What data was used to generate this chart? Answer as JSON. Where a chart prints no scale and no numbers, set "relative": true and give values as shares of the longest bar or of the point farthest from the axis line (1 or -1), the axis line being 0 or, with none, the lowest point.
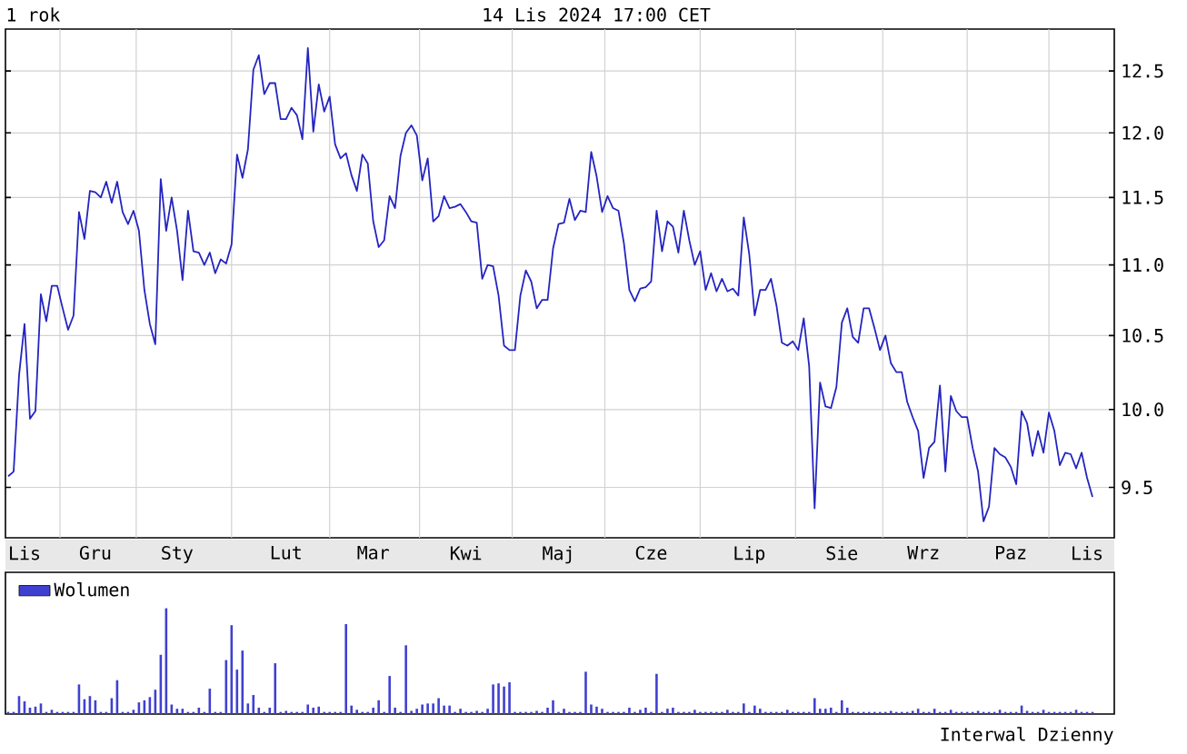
{
  "chart_data": [
    {
      "type": "line",
      "title": "1 rok",
      "subtitle": "14 Lis 2024 17:00 CET",
      "color": "#2424c0",
      "log": "y",
      "grid": true,
      "ylim": [
        9.19,
        12.85
      ],
      "categories": [
        null,
        null,
        null,
        "Lis",
        null,
        null,
        null,
        null,
        null,
        null,
        null,
        null,
        null,
        null,
        null,
        null,
        "Gru",
        null,
        null,
        null,
        null,
        null,
        null,
        null,
        null,
        null,
        null,
        null,
        null,
        null,
        null,
        "Sty",
        null,
        null,
        null,
        null,
        null,
        null,
        null,
        null,
        null,
        null,
        null,
        null,
        null,
        null,
        null,
        null,
        null,
        null,
        null,
        "Lut",
        null,
        null,
        null,
        null,
        null,
        null,
        null,
        null,
        null,
        null,
        null,
        null,
        null,
        null,
        null,
        "Mar",
        null,
        null,
        null,
        null,
        null,
        null,
        null,
        null,
        null,
        null,
        null,
        null,
        null,
        null,
        null,
        null,
        "Kwi",
        null,
        null,
        null,
        null,
        null,
        null,
        null,
        null,
        null,
        null,
        null,
        null,
        null,
        null,
        null,
        null,
        "Maj",
        null,
        null,
        null,
        null,
        null,
        null,
        null,
        null,
        null,
        null,
        null,
        null,
        null,
        null,
        null,
        null,
        "Cze",
        null,
        null,
        null,
        null,
        null,
        null,
        null,
        null,
        null,
        null,
        null,
        null,
        null,
        null,
        null,
        null,
        null,
        "Lip",
        null,
        null,
        null,
        null,
        null,
        null,
        null,
        null,
        null,
        null,
        null,
        null,
        null,
        null,
        null,
        null,
        "Sie",
        null,
        null,
        null,
        null,
        null,
        null,
        null,
        null,
        null,
        null,
        null,
        null,
        null,
        null,
        "Wrz",
        null,
        null,
        null,
        null,
        null,
        null,
        null,
        null,
        null,
        null,
        null,
        null,
        null,
        null,
        null,
        "Paz",
        null,
        null,
        null,
        null,
        null,
        null,
        null,
        null,
        null,
        null,
        null,
        null,
        null,
        "Lis",
        null
      ],
      "yticks": [
        9.5,
        {
          "value": 10,
          "label": "10.0"
        },
        10.5,
        {
          "value": 11,
          "label": "11.0"
        },
        11.5,
        {
          "value": 12,
          "label": "12.0"
        },
        12.5
      ],
      "values": [
        9.57,
        9.6,
        10.23,
        10.58,
        9.94,
        9.99,
        10.79,
        10.6,
        10.85,
        10.85,
        10.69,
        10.54,
        10.64,
        11.39,
        11.19,
        11.55,
        11.54,
        11.5,
        11.62,
        11.46,
        11.62,
        11.39,
        11.3,
        11.4,
        11.25,
        10.82,
        10.58,
        10.44,
        11.64,
        11.25,
        11.5,
        11.25,
        10.89,
        11.4,
        11.1,
        11.09,
        11.0,
        11.09,
        10.94,
        11.04,
        11.01,
        11.15,
        11.83,
        11.65,
        11.87,
        12.51,
        12.63,
        12.31,
        12.4,
        12.4,
        12.11,
        12.11,
        12.2,
        12.14,
        11.95,
        12.69,
        12.01,
        12.39,
        12.17,
        12.29,
        11.91,
        11.8,
        11.84,
        11.67,
        11.55,
        11.83,
        11.76,
        11.32,
        11.13,
        11.18,
        11.51,
        11.42,
        11.82,
        12.0,
        12.06,
        11.98,
        11.63,
        11.8,
        11.32,
        11.36,
        11.51,
        11.42,
        11.43,
        11.45,
        11.39,
        11.32,
        11.31,
        10.9,
        11.0,
        10.99,
        10.78,
        10.43,
        10.4,
        10.4,
        10.78,
        10.96,
        10.88,
        10.69,
        10.75,
        10.75,
        11.12,
        11.3,
        11.31,
        11.49,
        11.33,
        11.4,
        11.39,
        11.85,
        11.66,
        11.39,
        11.51,
        11.42,
        11.4,
        11.16,
        10.82,
        10.74,
        10.83,
        10.84,
        10.88,
        11.4,
        11.1,
        11.32,
        11.28,
        11.09,
        11.4,
        11.18,
        11.0,
        11.1,
        10.82,
        10.94,
        10.81,
        10.9,
        10.81,
        10.83,
        10.78,
        11.35,
        11.08,
        10.64,
        10.82,
        10.82,
        10.9,
        10.71,
        10.45,
        10.43,
        10.46,
        10.4,
        10.62,
        10.29,
        9.37,
        10.18,
        10.02,
        10.01,
        10.15,
        10.59,
        10.69,
        10.49,
        10.45,
        10.69,
        10.69,
        10.55,
        10.4,
        10.5,
        10.31,
        10.25,
        10.25,
        10.05,
        9.95,
        9.86,
        9.56,
        9.75,
        9.79,
        10.16,
        9.6,
        10.09,
        9.99,
        9.95,
        9.95,
        9.75,
        9.6,
        9.29,
        9.38,
        9.75,
        9.71,
        9.69,
        9.63,
        9.52,
        9.99,
        9.91,
        9.7,
        9.86,
        9.72,
        9.98,
        9.86,
        9.64,
        9.72,
        9.71,
        9.62,
        9.72,
        9.56,
        9.44
      ]
    },
    {
      "type": "bar",
      "relative": true,
      "legend": "top left",
      "annotations": [
        "Interwal Dzienny"
      ],
      "categories": [
        null,
        null,
        null,
        null,
        null,
        null,
        null,
        null,
        null,
        null,
        null,
        null,
        null,
        null,
        null,
        null,
        null,
        null,
        null,
        null,
        null,
        null,
        null,
        null,
        null,
        null,
        null,
        null,
        null,
        null,
        null,
        null,
        null,
        null,
        null,
        null,
        null,
        null,
        null,
        null,
        null,
        null,
        null,
        null,
        null,
        null,
        null,
        null,
        null,
        null,
        null,
        null,
        null,
        null,
        null,
        null,
        null,
        null,
        null,
        null,
        null,
        null,
        null,
        null,
        null,
        null,
        null,
        null,
        null,
        null,
        null,
        null,
        null,
        null,
        null,
        null,
        null,
        null,
        null,
        null,
        null,
        null,
        null,
        null,
        null,
        null,
        null,
        null,
        null,
        null,
        null,
        null,
        null,
        null,
        null,
        null,
        null,
        null,
        null,
        null,
        null,
        null,
        null,
        null,
        null,
        null,
        null,
        null,
        null,
        null,
        null,
        null,
        null,
        null,
        null,
        null,
        null,
        null,
        null,
        null,
        null,
        null,
        null,
        null,
        null,
        null,
        null,
        null,
        null,
        null,
        null,
        null,
        null,
        null,
        null,
        null,
        null,
        null,
        null,
        null,
        null,
        null,
        null,
        null,
        null,
        null,
        null,
        null,
        null,
        null,
        null,
        null,
        null,
        null,
        null,
        null,
        null,
        null,
        null,
        null,
        null,
        null,
        null,
        null,
        null,
        null,
        null,
        null,
        null,
        null,
        null,
        null,
        null,
        null,
        null,
        null,
        null,
        null,
        null,
        null,
        null,
        null,
        null,
        null,
        null,
        null,
        null,
        null,
        null,
        null,
        null,
        null,
        null,
        null,
        null,
        null,
        null,
        null,
        null,
        null
      ],
      "series": [
        {
          "name": "Wolumen",
          "color": "#4040d0",
          "values": [
            0.02,
            0.02,
            0.17,
            0.12,
            0.06,
            0.07,
            0.1,
            0.02,
            0.04,
            0.02,
            0.02,
            0.02,
            0.02,
            0.28,
            0.14,
            0.17,
            0.13,
            0.02,
            0.02,
            0.15,
            0.32,
            0.02,
            0.02,
            0.04,
            0.11,
            0.13,
            0.16,
            0.23,
            0.56,
            1.0,
            0.09,
            0.05,
            0.05,
            0.02,
            0.02,
            0.06,
            0.02,
            0.24,
            0.02,
            0.02,
            0.51,
            0.84,
            0.42,
            0.6,
            0.1,
            0.18,
            0.06,
            0.02,
            0.06,
            0.48,
            0.02,
            0.03,
            0.02,
            0.02,
            0.02,
            0.09,
            0.06,
            0.07,
            0.02,
            0.02,
            0.02,
            0.02,
            0.85,
            0.08,
            0.04,
            0.02,
            0.02,
            0.06,
            0.13,
            0.02,
            0.36,
            0.06,
            0.02,
            0.65,
            0.03,
            0.05,
            0.09,
            0.1,
            0.1,
            0.15,
            0.08,
            0.08,
            0.02,
            0.05,
            0.02,
            0.02,
            0.03,
            0.02,
            0.05,
            0.28,
            0.29,
            0.26,
            0.3,
            0.02,
            0.02,
            0.02,
            0.02,
            0.03,
            0.02,
            0.06,
            0.13,
            0.02,
            0.05,
            0.02,
            0.02,
            0.02,
            0.4,
            0.09,
            0.07,
            0.05,
            0.02,
            0.02,
            0.02,
            0.02,
            0.06,
            0.02,
            0.04,
            0.06,
            0.02,
            0.38,
            0.02,
            0.05,
            0.06,
            0.02,
            0.02,
            0.02,
            0.04,
            0.02,
            0.02,
            0.02,
            0.02,
            0.02,
            0.04,
            0.02,
            0.02,
            0.1,
            0.02,
            0.08,
            0.05,
            0.02,
            0.02,
            0.02,
            0.02,
            0.04,
            0.02,
            0.02,
            0.02,
            0.02,
            0.15,
            0.05,
            0.05,
            0.06,
            0.02,
            0.13,
            0.06,
            0.02,
            0.02,
            0.02,
            0.02,
            0.02,
            0.02,
            0.02,
            0.03,
            0.02,
            0.02,
            0.02,
            0.03,
            0.05,
            0.02,
            0.02,
            0.05,
            0.02,
            0.02,
            0.04,
            0.02,
            0.02,
            0.02,
            0.02,
            0.03,
            0.02,
            0.02,
            0.02,
            0.04,
            0.02,
            0.02,
            0.02,
            0.08,
            0.03,
            0.02,
            0.02,
            0.04,
            0.02,
            0.02,
            0.02,
            0.02,
            0.02,
            0.04,
            0.02,
            0.02,
            0.02
          ]
        }
      ]
    }
  ]
}
